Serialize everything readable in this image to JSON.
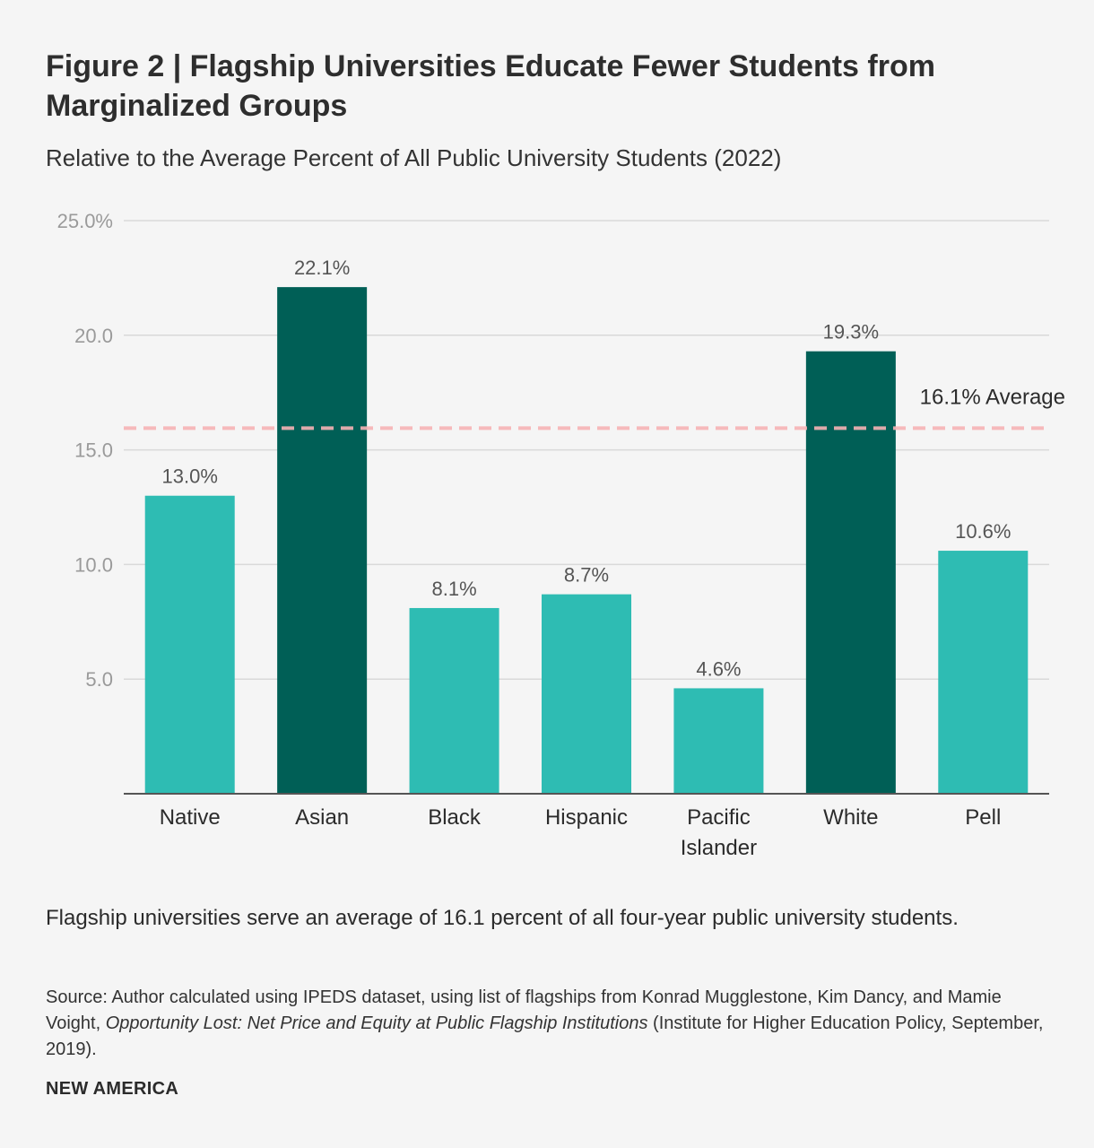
{
  "chart_data": {
    "type": "bar",
    "title": "Figure 2 | Flagship Universities Educate Fewer Students from Marginalized Groups",
    "subtitle": "Relative to the Average Percent of All Public University Students (2022)",
    "categories": [
      "Native",
      "Asian",
      "Black",
      "Hispanic",
      "Pacific Islander",
      "White",
      "Pell"
    ],
    "category_lines": [
      [
        "Native"
      ],
      [
        "Asian"
      ],
      [
        "Black"
      ],
      [
        "Hispanic"
      ],
      [
        "Pacific",
        "Islander"
      ],
      [
        "White"
      ],
      [
        "Pell"
      ]
    ],
    "values": [
      13.0,
      22.1,
      8.1,
      8.7,
      4.6,
      19.3,
      10.6
    ],
    "value_labels": [
      "13.0%",
      "22.1%",
      "8.1%",
      "8.7%",
      "4.6%",
      "19.3%",
      "10.6%"
    ],
    "highlight": [
      false,
      true,
      false,
      false,
      false,
      true,
      false
    ],
    "colors": {
      "normal": "#2ebcb3",
      "highlight": "#005f56",
      "average": "#f6b3b5",
      "grid": "#d9d9d9",
      "axis": "#555555"
    },
    "ylim": [
      0,
      25
    ],
    "yticks": [
      5,
      10,
      15,
      20,
      25
    ],
    "ytick_labels": [
      "5.0",
      "10.0",
      "15.0",
      "20.0",
      "25.0%"
    ],
    "average": {
      "value": 16.1,
      "label": "16.1% Average"
    },
    "grid": true,
    "xlabel": "",
    "ylabel": ""
  },
  "note": "Flagship universities serve an average of 16.1 percent of all four-year public university students.",
  "source": {
    "prefix": "Source: Author calculated using IPEDS dataset, using list of flagships from Konrad Mugglestone, Kim Dancy, and Mamie Voight, ",
    "italic": "Opportunity Lost: Net Price and Equity at Public Flagship Institutions",
    "suffix": " (Institute for Higher Education Policy, September, 2019)."
  },
  "brand": "NEW AMERICA"
}
